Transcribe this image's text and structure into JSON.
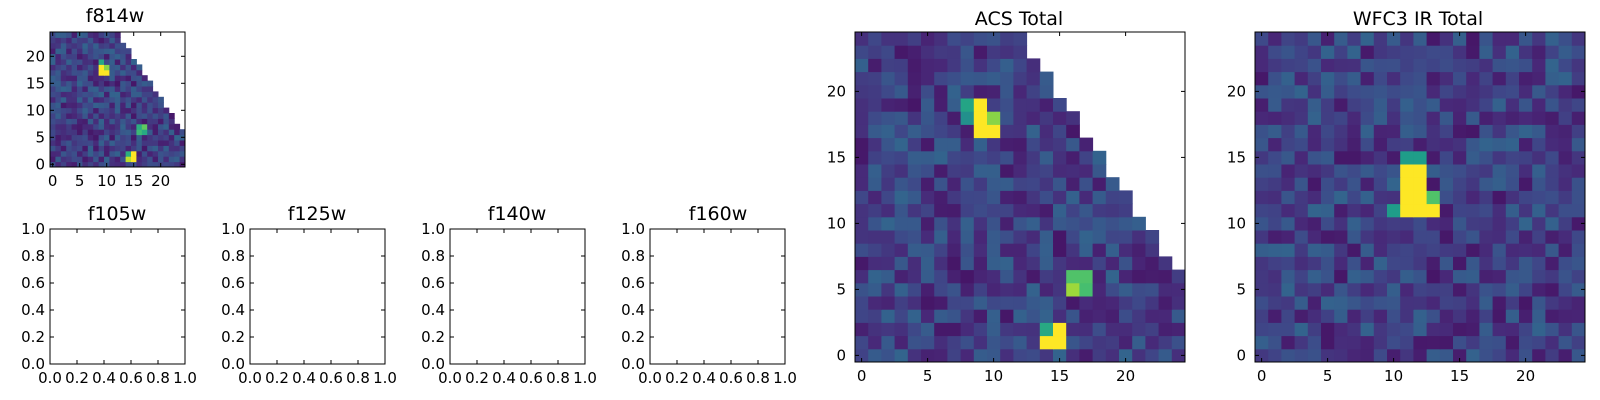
{
  "colormap": {
    "name": "viridis",
    "stops": [
      "#440154",
      "#482878",
      "#3e4989",
      "#31688e",
      "#26828e",
      "#1f9e89",
      "#35b779",
      "#6ece58",
      "#b5de2b",
      "#fde725"
    ]
  },
  "chart_data": [
    {
      "id": "f814w",
      "type": "heatmap",
      "title": "f814w",
      "xticks": [
        0,
        5,
        10,
        15,
        20
      ],
      "yticks": [
        0,
        5,
        10,
        15,
        20
      ],
      "xlim": [
        -0.5,
        24.5
      ],
      "ylim": [
        -0.5,
        24.5
      ],
      "mask": "triangular",
      "bright_pixels": [
        [
          9,
          17,
          1.0
        ],
        [
          10,
          17,
          1.0
        ],
        [
          9,
          18,
          1.0
        ],
        [
          10,
          18,
          0.82
        ],
        [
          9,
          19,
          0.6
        ],
        [
          16,
          6,
          0.68
        ],
        [
          17,
          6,
          0.6
        ],
        [
          16,
          7,
          0.62
        ],
        [
          17,
          7,
          0.75
        ],
        [
          15,
          1,
          1.0
        ],
        [
          14,
          1,
          0.9
        ],
        [
          14,
          2,
          0.62
        ],
        [
          15,
          2,
          1.0
        ]
      ]
    },
    {
      "id": "f105w",
      "type": "heatmap",
      "title": "f105w",
      "empty": true,
      "xticks": [
        "0.0",
        "0.2",
        "0.4",
        "0.6",
        "0.8",
        "1.0"
      ],
      "yticks": [
        "0.0",
        "0.2",
        "0.4",
        "0.6",
        "0.8",
        "1.0"
      ],
      "xlim": [
        0,
        1
      ],
      "ylim": [
        0,
        1
      ]
    },
    {
      "id": "f125w",
      "type": "heatmap",
      "title": "f125w",
      "empty": true,
      "xticks": [
        "0.0",
        "0.2",
        "0.4",
        "0.6",
        "0.8",
        "1.0"
      ],
      "yticks": [
        "0.0",
        "0.2",
        "0.4",
        "0.6",
        "0.8",
        "1.0"
      ],
      "xlim": [
        0,
        1
      ],
      "ylim": [
        0,
        1
      ]
    },
    {
      "id": "f140w",
      "type": "heatmap",
      "title": "f140w",
      "empty": true,
      "xticks": [
        "0.0",
        "0.2",
        "0.4",
        "0.6",
        "0.8",
        "1.0"
      ],
      "yticks": [
        "0.0",
        "0.2",
        "0.4",
        "0.6",
        "0.8",
        "1.0"
      ],
      "xlim": [
        0,
        1
      ],
      "ylim": [
        0,
        1
      ]
    },
    {
      "id": "f160w",
      "type": "heatmap",
      "title": "f160w",
      "empty": true,
      "xticks": [
        "0.0",
        "0.2",
        "0.4",
        "0.6",
        "0.8",
        "1.0"
      ],
      "yticks": [
        "0.0",
        "0.2",
        "0.4",
        "0.6",
        "0.8",
        "1.0"
      ],
      "xlim": [
        0,
        1
      ],
      "ylim": [
        0,
        1
      ]
    },
    {
      "id": "acs-total",
      "type": "heatmap",
      "title": "ACS Total",
      "xticks": [
        0,
        5,
        10,
        15,
        20
      ],
      "yticks": [
        0,
        5,
        10,
        15,
        20
      ],
      "xlim": [
        -0.5,
        24.5
      ],
      "ylim": [
        -0.5,
        24.5
      ],
      "mask": "triangular",
      "bright_pixels": [
        [
          9,
          17,
          1.0
        ],
        [
          10,
          17,
          1.0
        ],
        [
          9,
          18,
          1.0
        ],
        [
          10,
          18,
          0.82
        ],
        [
          9,
          19,
          1.0
        ],
        [
          8,
          19,
          0.58
        ],
        [
          8,
          18,
          0.5
        ],
        [
          16,
          5,
          0.85
        ],
        [
          17,
          5,
          0.7
        ],
        [
          16,
          6,
          0.72
        ],
        [
          17,
          6,
          0.72
        ],
        [
          14,
          1,
          1.0
        ],
        [
          15,
          1,
          1.0
        ],
        [
          15,
          2,
          1.0
        ],
        [
          14,
          2,
          0.6
        ]
      ]
    },
    {
      "id": "wfc3-ir-total",
      "type": "heatmap",
      "title": "WFC3 IR Total",
      "xticks": [
        0,
        5,
        10,
        15,
        20
      ],
      "yticks": [
        0,
        5,
        10,
        15,
        20
      ],
      "xlim": [
        -0.5,
        24.5
      ],
      "ylim": [
        -0.5,
        24.5
      ],
      "mask": "none",
      "bright_pixels": [
        [
          11,
          11,
          1.0
        ],
        [
          12,
          11,
          1.0
        ],
        [
          13,
          11,
          1.0
        ],
        [
          11,
          12,
          1.0
        ],
        [
          12,
          12,
          1.0
        ],
        [
          11,
          13,
          1.0
        ],
        [
          12,
          13,
          1.0
        ],
        [
          11,
          14,
          1.0
        ],
        [
          12,
          14,
          1.0
        ],
        [
          11,
          15,
          0.55
        ],
        [
          12,
          15,
          0.55
        ],
        [
          13,
          12,
          0.72
        ],
        [
          10,
          11,
          0.55
        ]
      ]
    }
  ]
}
